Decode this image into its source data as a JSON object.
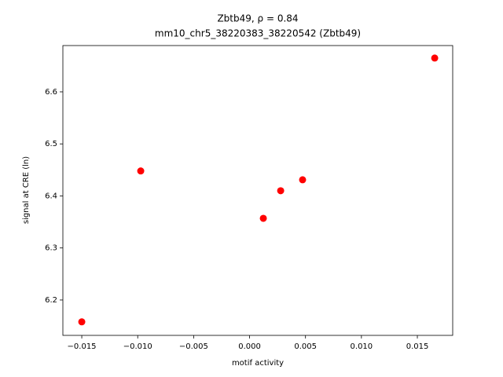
{
  "chart_data": {
    "type": "scatter",
    "title": "Zbtb49, ρ = 0.84",
    "subtitle": "mm10_chr5_38220383_38220542 (Zbtb49)",
    "x_label": "motif activity",
    "y_label": "signal at CRE (ln)",
    "color": "#ff0000",
    "x": [
      -0.015,
      -0.00973,
      0.00123,
      0.00278,
      0.00474,
      0.01655
    ],
    "values": [
      6.158,
      6.448,
      6.357,
      6.41,
      6.431,
      6.665
    ],
    "xlim": [
      -0.01669,
      0.01816
    ],
    "ylim": [
      6.132,
      6.689
    ],
    "xticks": [
      {
        "value": -0.015,
        "label": "−0.015"
      },
      {
        "value": -0.01,
        "label": "−0.010"
      },
      {
        "value": -0.005,
        "label": "−0.005"
      },
      {
        "value": 0,
        "label": "0.000"
      },
      0.005,
      {
        "value": 0.01,
        "label": "0.010"
      },
      0.015
    ],
    "yticks": [
      6.2,
      6.3,
      6.4,
      6.5,
      6.6
    ]
  }
}
